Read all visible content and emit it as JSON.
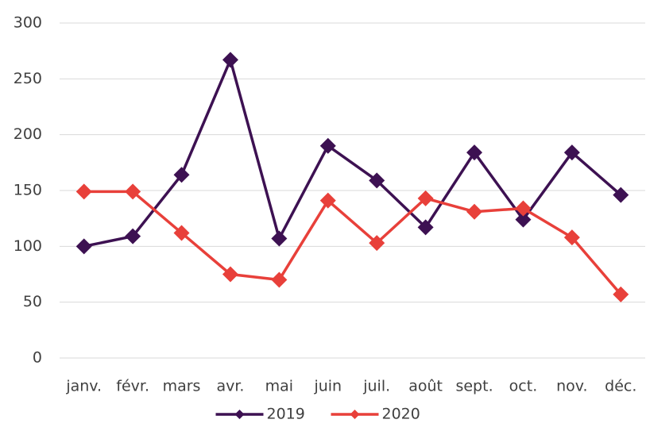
{
  "chart_data": {
    "type": "line",
    "categories": [
      "janv.",
      "févr.",
      "mars",
      "avr.",
      "mai",
      "juin",
      "juil.",
      "août",
      "sept.",
      "oct.",
      "nov.",
      "déc."
    ],
    "series": [
      {
        "name": "2019",
        "color": "#3d1152",
        "values": [
          100,
          109,
          164,
          267,
          107,
          190,
          159,
          117,
          184,
          124,
          184,
          146
        ]
      },
      {
        "name": "2020",
        "color": "#e8403a",
        "values": [
          149,
          149,
          112,
          75,
          70,
          141,
          103,
          143,
          131,
          134,
          108,
          57
        ]
      }
    ],
    "ylim": [
      0,
      300
    ],
    "yticks": [
      0,
      50,
      100,
      150,
      200,
      250,
      300
    ],
    "grid": true,
    "legend": "bottom"
  }
}
